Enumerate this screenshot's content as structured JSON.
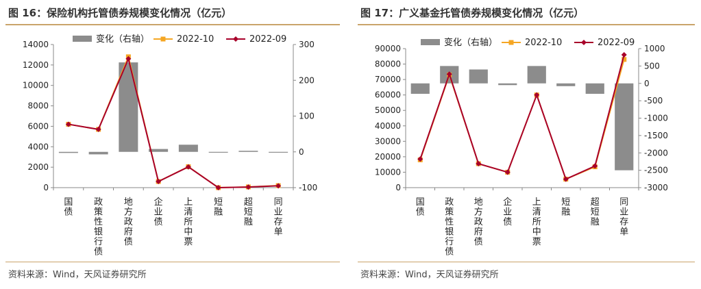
{
  "charts": [
    {
      "title": "图 16：保险机构托管债券规模变化情况（亿元）",
      "source": "资料来源：Wind，天风证券研究所",
      "colors": {
        "bar": "#8c8c8c",
        "line_2022_10": "#f5a623",
        "line_2022_09": "#a8002a"
      },
      "chart_data": {
        "type": "bar-line-combo",
        "categories": [
          "国债",
          "政策性银行债",
          "地方政府债",
          "企业债",
          "上清所中票",
          "短融",
          "超短融",
          "同业存单"
        ],
        "legend": [
          "变化（右轴）",
          "2022-10",
          "2022-09"
        ],
        "legend_position": "top",
        "left_axis": {
          "min": 0,
          "max": 14000,
          "ticks": [
            0,
            2000,
            4000,
            6000,
            8000,
            10000,
            12000,
            14000
          ]
        },
        "right_axis": {
          "min": -100,
          "max": 300,
          "ticks": [
            -100,
            0,
            100,
            200,
            300
          ]
        },
        "series": [
          {
            "name": "变化（右轴）",
            "type": "bar",
            "axis": "right",
            "values": [
              -3,
              -7,
              250,
              8,
              20,
              0,
              3,
              0
            ]
          },
          {
            "name": "2022-10",
            "type": "line",
            "axis": "left",
            "values": [
              6200,
              5700,
              12800,
              600,
              2050,
              0,
              70,
              200
            ]
          },
          {
            "name": "2022-09",
            "type": "line",
            "axis": "left",
            "values": [
              6200,
              5700,
              12600,
              600,
              2030,
              0,
              60,
              180
            ]
          }
        ]
      }
    },
    {
      "title": "图 17：广义基金托管债券规模变化情况（亿元）",
      "source": "资料来源：Wind，天风证券研究所",
      "colors": {
        "bar": "#8c8c8c",
        "line_2022_10": "#f5a623",
        "line_2022_09": "#a8002a"
      },
      "chart_data": {
        "type": "bar-line-combo",
        "categories": [
          "国债",
          "政策性银行债",
          "地方政府债",
          "企业债",
          "上清所中票",
          "短融",
          "超短融",
          "同业存单"
        ],
        "legend": [
          "变化（右轴）",
          "2022-10",
          "2022-09"
        ],
        "legend_position": "top",
        "left_axis": {
          "min": 0,
          "max": 90000,
          "ticks": [
            0,
            10000,
            20000,
            30000,
            40000,
            50000,
            60000,
            70000,
            80000,
            90000
          ]
        },
        "right_axis": {
          "min": -3000,
          "max": 1000,
          "ticks": [
            -3000,
            -2500,
            -2000,
            -1500,
            -1000,
            -500,
            0,
            500,
            1000
          ]
        },
        "series": [
          {
            "name": "变化（右轴）",
            "type": "bar",
            "axis": "right",
            "values": [
              -300,
              500,
              400,
              -50,
              500,
              -80,
              -300,
              -2500
            ]
          },
          {
            "name": "2022-10",
            "type": "line",
            "axis": "left",
            "values": [
              18000,
              73000,
              15500,
              10000,
              60000,
              5500,
              13500,
              83000
            ]
          },
          {
            "name": "2022-09",
            "type": "line",
            "axis": "left",
            "values": [
              18500,
              73500,
              15500,
              10000,
              60000,
              5500,
              14000,
              86000
            ]
          }
        ]
      }
    }
  ]
}
